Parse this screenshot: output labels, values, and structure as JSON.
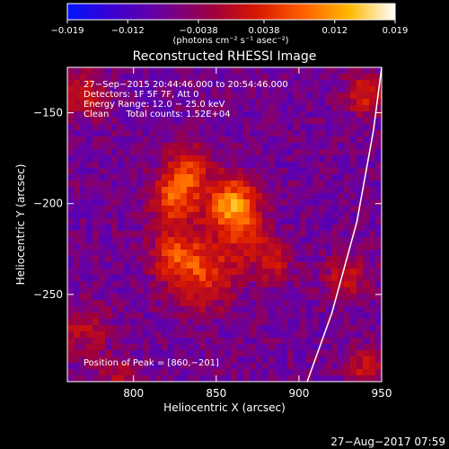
{
  "colorbar": {
    "ticks": [
      -0.019,
      -0.012,
      -0.0038,
      0.0038,
      0.012,
      0.019
    ],
    "tick_labels": [
      "−0.019",
      "−0.012",
      "−0.0038",
      "0.0038",
      "0.012",
      "0.019"
    ],
    "units_line": "(photons cm⁻² s⁻¹ asec⁻²)",
    "range": [
      -0.019,
      0.019
    ],
    "colormap": [
      "#0015ff",
      "#3a00d0",
      "#6a00a0",
      "#a0003a",
      "#d81800",
      "#ff6000",
      "#ffb800",
      "#ffffff"
    ]
  },
  "title": "Reconstructed RHESSI Image",
  "info": {
    "line1": "27−Sep−2015 20:44:46.000 to 20:54:46.000",
    "line2": "Detectors: 1F 5F 7F, Att 0",
    "line3": "Energy Range: 12.0 − 25.0 keV",
    "line4": "Clean      Total counts: 1.52E+04"
  },
  "peak_text": "Position of Peak = [860,−201]",
  "footer_timestamp": "27−Aug−2017 07:59",
  "chart_data": {
    "type": "heatmap",
    "title": "Reconstructed RHESSI Image",
    "xlabel": "Heliocentric X (arcsec)",
    "ylabel": "Heliocentric Y (arcsec)",
    "xlim": [
      760,
      950
    ],
    "ylim": [
      -298,
      -125
    ],
    "x_ticks": [
      800,
      850,
      900,
      950
    ],
    "x_tick_labels": [
      "800",
      "850",
      "900",
      "950"
    ],
    "y_ticks": [
      -150,
      -200,
      -250
    ],
    "y_tick_labels": [
      "−150",
      "−200",
      "−250"
    ],
    "peak": [
      860,
      -201
    ],
    "value_range": [
      -0.019,
      0.019
    ],
    "sources": [
      {
        "x": 860,
        "y": -201,
        "sigma": 11,
        "amp": 0.019
      },
      {
        "x": 825,
        "y": -197,
        "sigma": 10,
        "amp": 0.014
      },
      {
        "x": 833,
        "y": -180,
        "sigma": 9,
        "amp": 0.011
      },
      {
        "x": 843,
        "y": -238,
        "sigma": 14,
        "amp": 0.012
      },
      {
        "x": 824,
        "y": -228,
        "sigma": 10,
        "amp": 0.01
      },
      {
        "x": 870,
        "y": -220,
        "sigma": 9,
        "amp": 0.007
      },
      {
        "x": 885,
        "y": -233,
        "sigma": 8,
        "amp": 0.008
      },
      {
        "x": 770,
        "y": -140,
        "sigma": 9,
        "amp": 0.009
      },
      {
        "x": 940,
        "y": -140,
        "sigma": 8,
        "amp": 0.01
      },
      {
        "x": 928,
        "y": -240,
        "sigma": 9,
        "amp": 0.008
      },
      {
        "x": 940,
        "y": -290,
        "sigma": 8,
        "amp": 0.008
      },
      {
        "x": 770,
        "y": -270,
        "sigma": 10,
        "amp": 0.007
      },
      {
        "x": 790,
        "y": -295,
        "sigma": 8,
        "amp": 0.006
      }
    ],
    "limb_curve": {
      "x": [
        950,
        945,
        935,
        920,
        905
      ],
      "y": [
        -125,
        -160,
        -210,
        -260,
        -298
      ]
    }
  }
}
